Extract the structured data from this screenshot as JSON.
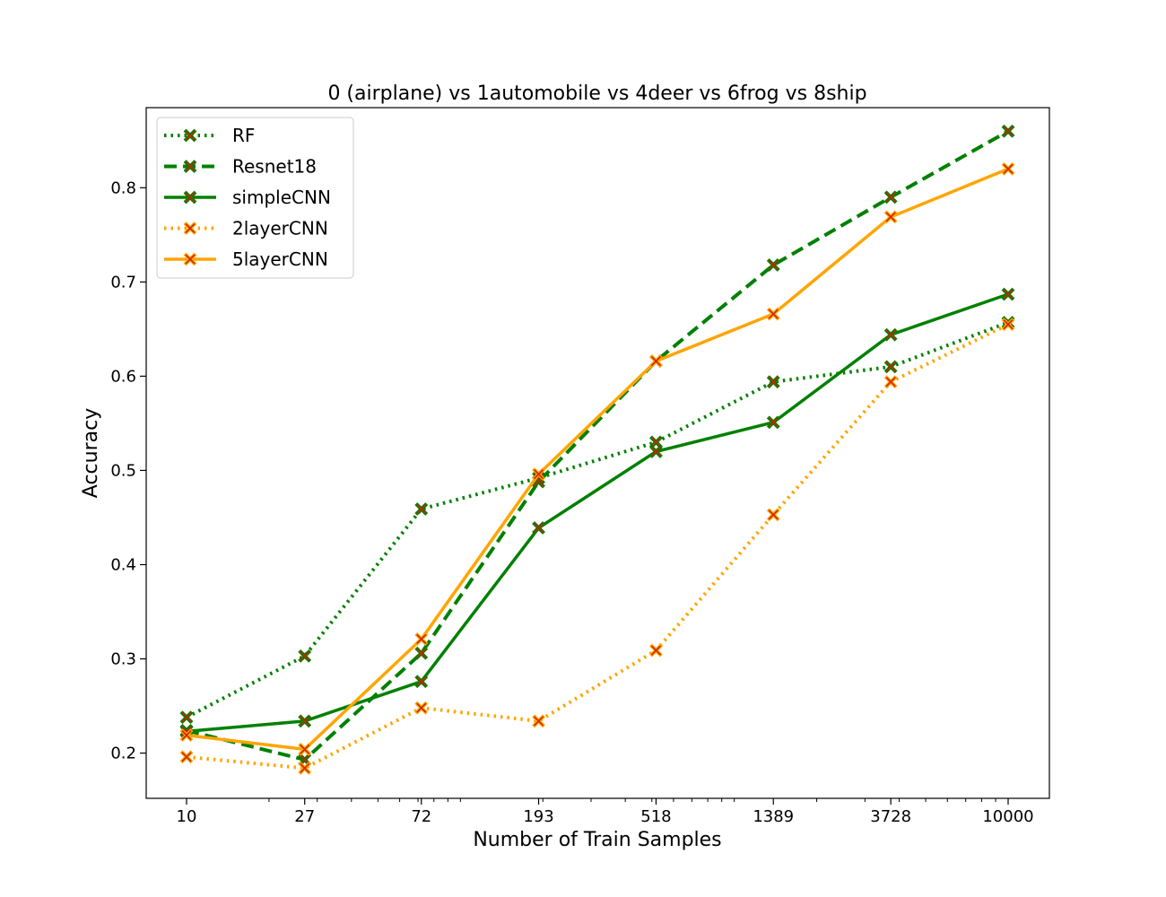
{
  "chart_data": {
    "type": "line",
    "title": "0 (airplane)  vs 1automobile vs 4deer vs 6frog vs 8ship",
    "xlabel": "Number of Train Samples",
    "ylabel": "Accuracy",
    "x_scale": "log",
    "x": [
      10,
      27,
      72,
      193,
      518,
      1389,
      3728,
      10000
    ],
    "x_tick_labels": [
      "10",
      "27",
      "72",
      "193",
      "518",
      "1389",
      "3728",
      "10000"
    ],
    "y_ticks": [
      0.2,
      0.3,
      0.4,
      0.5,
      0.6,
      0.7,
      0.8
    ],
    "y_tick_labels": [
      "0.2",
      "0.3",
      "0.4",
      "0.5",
      "0.6",
      "0.7",
      "0.8"
    ],
    "ylim": [
      0.152,
      0.885
    ],
    "grid": false,
    "legend_position": "upper-left",
    "marker": "x",
    "marker_fill": "#cc2200",
    "series": [
      {
        "name": "RF",
        "color": "#008000",
        "style": "dotted",
        "values": [
          0.238,
          0.303,
          0.459,
          0.492,
          0.53,
          0.594,
          0.61,
          0.657
        ]
      },
      {
        "name": "Resnet18",
        "color": "#008000",
        "style": "dashed",
        "values": [
          0.224,
          0.193,
          0.306,
          0.488,
          0.616,
          0.718,
          0.79,
          0.86
        ]
      },
      {
        "name": "simpleCNN",
        "color": "#008000",
        "style": "solid",
        "values": [
          0.223,
          0.234,
          0.276,
          0.439,
          0.52,
          0.551,
          0.644,
          0.687
        ]
      },
      {
        "name": "2layerCNN",
        "color": "#ffa500",
        "style": "dotted",
        "values": [
          0.196,
          0.184,
          0.248,
          0.234,
          0.309,
          0.453,
          0.594,
          0.655
        ]
      },
      {
        "name": "5layerCNN",
        "color": "#ffa500",
        "style": "solid",
        "values": [
          0.219,
          0.204,
          0.321,
          0.496,
          0.616,
          0.666,
          0.769,
          0.82
        ]
      }
    ]
  }
}
